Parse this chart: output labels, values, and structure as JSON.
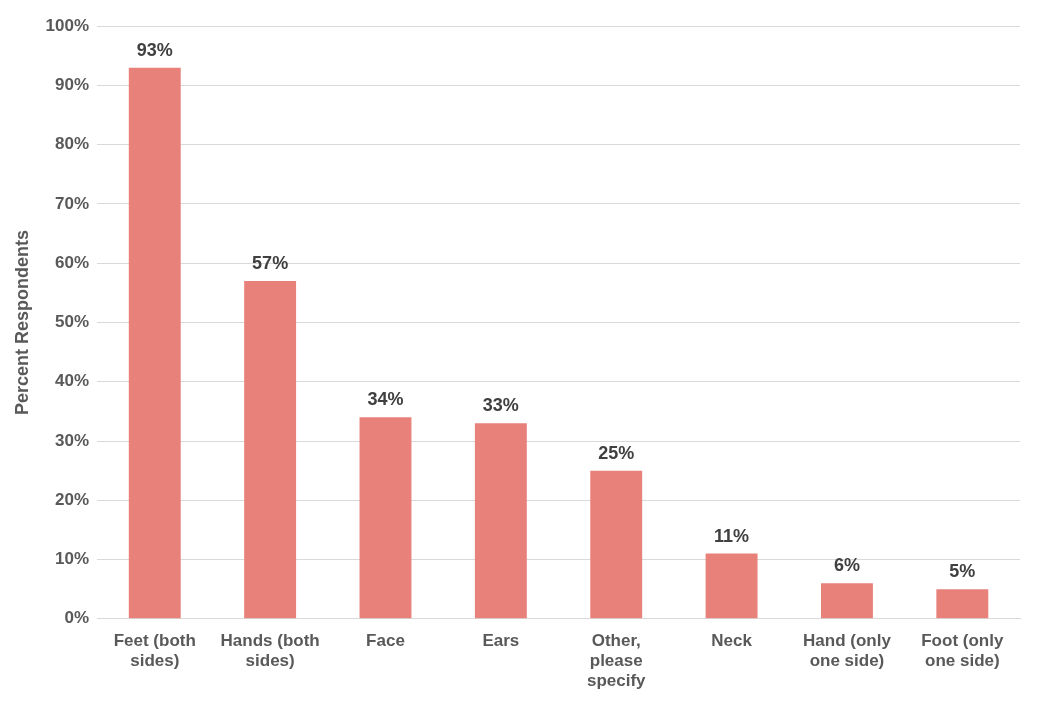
{
  "chart_data": {
    "type": "bar",
    "ylabel": "Percent Respondents",
    "categories": [
      "Feet (both sides)",
      "Hands (both sides)",
      "Face",
      "Ears",
      "Other, please specify",
      "Neck",
      "Hand (only one side)",
      "Foot (only one side)"
    ],
    "values": [
      93,
      57,
      34,
      33,
      25,
      11,
      6,
      5
    ],
    "value_labels": [
      "93%",
      "57%",
      "34%",
      "33%",
      "25%",
      "11%",
      "6%",
      "5%"
    ],
    "color": "#e8817a",
    "ylim": [
      0,
      100
    ],
    "yticks": [
      {
        "value": 0,
        "label": "0%"
      },
      {
        "value": 10,
        "label": "10%"
      },
      {
        "value": 20,
        "label": "20%"
      },
      {
        "value": 30,
        "label": "30%"
      },
      {
        "value": 40,
        "label": "40%"
      },
      {
        "value": 50,
        "label": "50%"
      },
      {
        "value": 60,
        "label": "60%"
      },
      {
        "value": 70,
        "label": "70%"
      },
      {
        "value": 80,
        "label": "80%"
      },
      {
        "value": 90,
        "label": "90%"
      },
      {
        "value": 100,
        "label": "100%"
      }
    ],
    "grid": "y",
    "legend": false
  }
}
